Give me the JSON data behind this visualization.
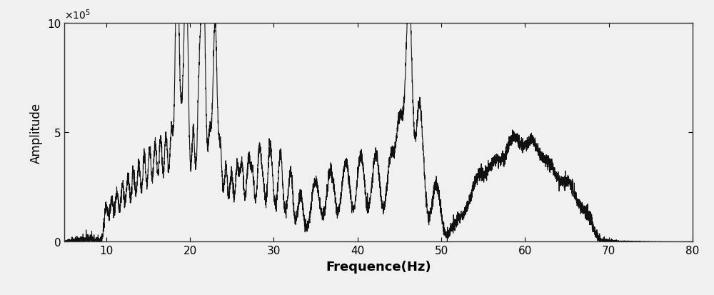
{
  "title": "",
  "xlabel": "Frequence(Hz)",
  "ylabel": "Amplitude",
  "xlim": [
    5,
    80
  ],
  "ylim": [
    0,
    1000000.0
  ],
  "xticks": [
    10,
    20,
    30,
    40,
    50,
    60,
    70,
    80
  ],
  "yticks": [
    0,
    500000.0,
    1000000.0
  ],
  "line_color": "#111111",
  "line_width": 0.8,
  "background_color": "#f0f0f0",
  "figsize": [
    10.0,
    4.14
  ],
  "dpi": 100
}
